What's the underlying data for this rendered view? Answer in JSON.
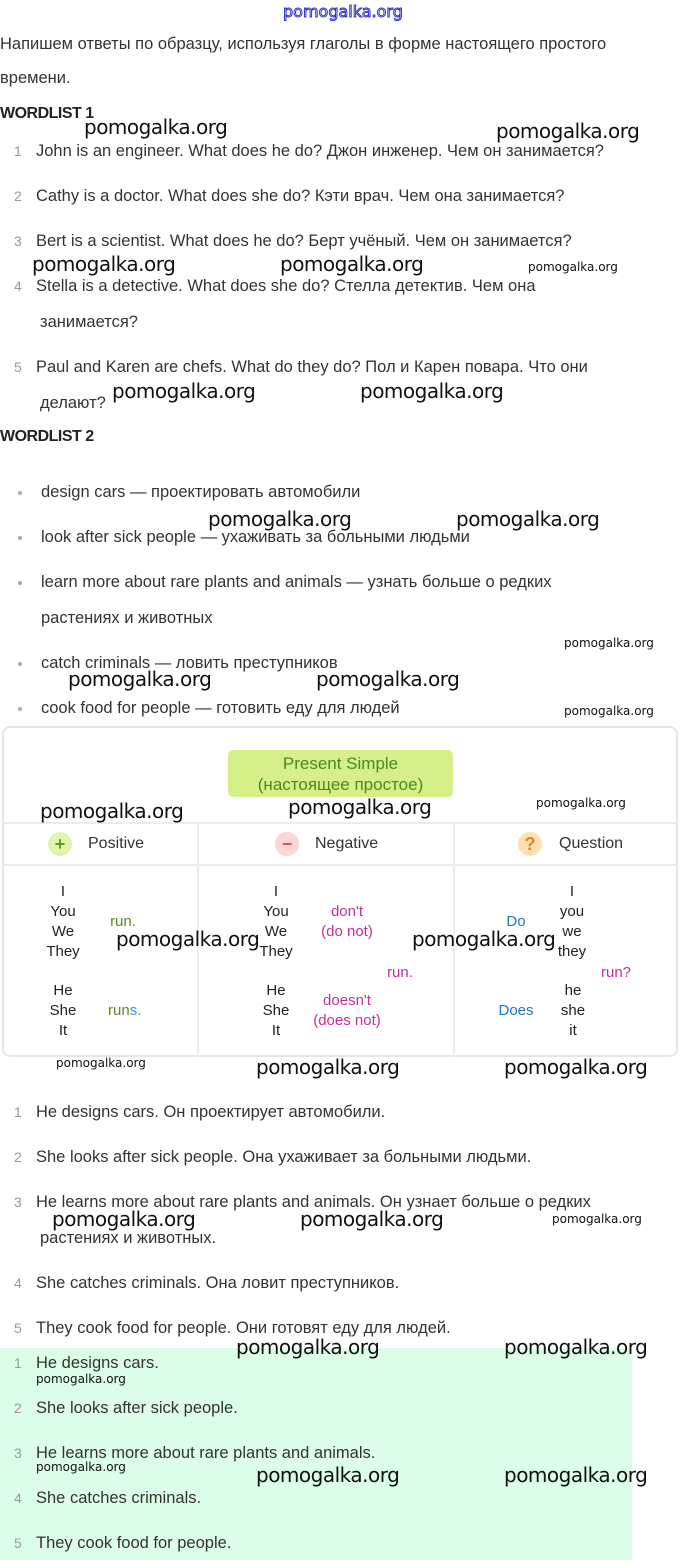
{
  "watermark": "pomogalka.org",
  "intro": [
    "Напишем ответы по образцу, используя глаголы в форме настоящего простого",
    "времени."
  ],
  "wordlist1": {
    "title": "WORDLIST 1",
    "items": [
      {
        "n": "1",
        "lines": [
          "John is an engineer. What does he do? Джон инженер. Чем он занимается?"
        ]
      },
      {
        "n": "2",
        "lines": [
          "Cathy is a doctor. What does she do? Кэти врач. Чем она занимается?"
        ]
      },
      {
        "n": "3",
        "lines": [
          "Bert is a scientist. What does he do? Берт учёный. Чем он занимается?"
        ]
      },
      {
        "n": "4",
        "lines": [
          "Stella is a detective. What does she do? Стелла детектив. Чем она",
          "занимается?"
        ]
      },
      {
        "n": "5",
        "lines": [
          "Paul and Karen are chefs. What do they do? Пол и Карен повара. Что они",
          "делают?"
        ]
      }
    ]
  },
  "wordlist2": {
    "title": "WORDLIST 2",
    "items": [
      [
        "design cars — проектировать автомобили"
      ],
      [
        "look after sick people — ухаживать за больными людьми"
      ],
      [
        "learn more about rare plants and animals — узнать больше о редких",
        "растениях и животных"
      ],
      [
        "catch criminals — ловить преступников"
      ],
      [
        "cook food for people — готовить еду для людей"
      ]
    ]
  },
  "grammar": {
    "title": "Present  Simple",
    "subtitle": "(настоящее простое)",
    "columns": [
      {
        "label": "Positive",
        "icon": "plus-icon",
        "symbol": "+",
        "color": "#5a9e1e",
        "bg": "#dff5b0"
      },
      {
        "label": "Negative",
        "icon": "minus-icon",
        "symbol": "−",
        "color": "#e0505a",
        "bg": "#fdd5d5"
      },
      {
        "label": "Question",
        "icon": "question-icon",
        "symbol": "?",
        "color": "#d98a1a",
        "bg": "#fde0b0"
      }
    ],
    "positive": {
      "group1": [
        "I",
        "You",
        "We",
        "They"
      ],
      "verb1": "run.",
      "group2": [
        "He",
        "She",
        "It"
      ],
      "verb2a": "run",
      "verb2b": "s."
    },
    "negative": {
      "group1": [
        "I",
        "You",
        "We",
        "They"
      ],
      "aux1": [
        "don't",
        "(do not)"
      ],
      "verb": "run.",
      "group2": [
        "He",
        "She",
        "It"
      ],
      "aux2": [
        "doesn't",
        "(does not)"
      ]
    },
    "question": {
      "aux1": "Do",
      "group1": [
        "I",
        "you",
        "we",
        "they"
      ],
      "verb": "run?",
      "aux2": "Does",
      "group2": [
        "he",
        "she",
        "it"
      ]
    },
    "colors": {
      "green": "#5a8a20",
      "blue": "#3a9ad9",
      "magenta": "#c0309a",
      "aux_blue": "#1a7ab8"
    }
  },
  "answers_full": [
    {
      "n": "1",
      "lines": [
        "He designs cars. Он проектирует автомобили."
      ]
    },
    {
      "n": "2",
      "lines": [
        "She looks after sick people. Она ухаживает за больными людьми."
      ]
    },
    {
      "n": "3",
      "lines": [
        "He learns more about rare plants and animals. Он узнает больше о редких",
        "растениях и животных."
      ]
    },
    {
      "n": "4",
      "lines": [
        "She catches criminals. Она ловит преступников."
      ]
    },
    {
      "n": "5",
      "lines": [
        "They cook food for people. Они готовят еду для людей."
      ]
    }
  ],
  "answers_short": [
    {
      "n": "1",
      "text": "He designs cars."
    },
    {
      "n": "2",
      "text": "She looks after sick people."
    },
    {
      "n": "3",
      "text": "He learns more about rare plants and animals."
    },
    {
      "n": "4",
      "text": "She catches criminals."
    },
    {
      "n": "5",
      "text": "They cook food for people."
    }
  ]
}
